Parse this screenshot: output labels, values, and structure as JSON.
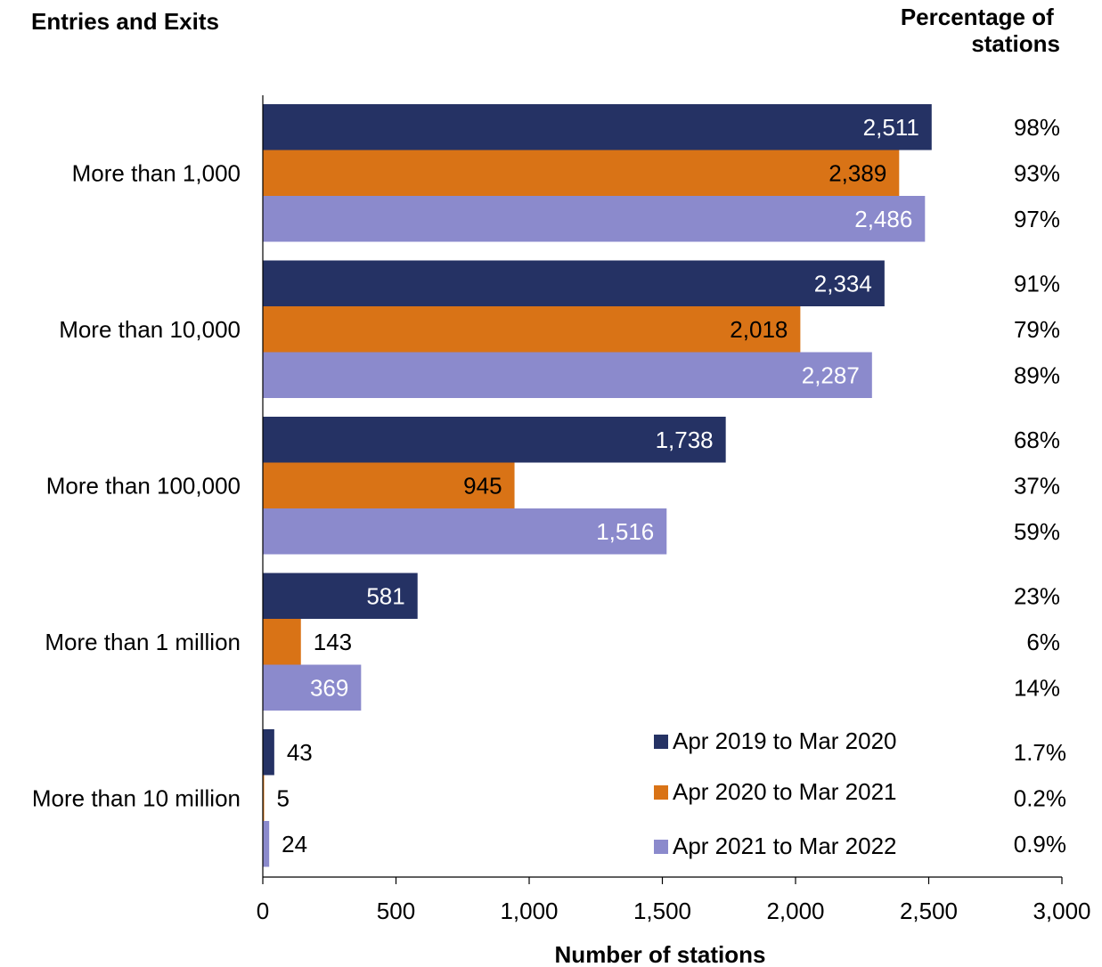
{
  "chart_data": {
    "type": "bar",
    "orientation": "horizontal",
    "y_header": "Entries and Exits",
    "right_header": [
      "Percentage of",
      "stations"
    ],
    "xlabel": "Number of stations",
    "xlim": [
      0,
      3000
    ],
    "xticks": [
      "0",
      "500",
      "1,000",
      "1,500",
      "2,000",
      "2,500",
      "3,000"
    ],
    "grid": false,
    "legend_position": "bottom-right",
    "categories": [
      "More than 1,000",
      "More than 10,000",
      "More than 100,000",
      "More than 1 million",
      "More than 10 million"
    ],
    "series": [
      {
        "name": "Apr 2019 to Mar 2020",
        "color": "#253264",
        "values": [
          2511,
          2334,
          1738,
          581,
          43
        ],
        "labels": [
          "2,511",
          "2,334",
          "1,738",
          "581",
          "43"
        ],
        "percentages": [
          "98%",
          "91%",
          "68%",
          "23%",
          "1.7%"
        ]
      },
      {
        "name": "Apr 2020 to Mar 2021",
        "color": "#D97316",
        "values": [
          2389,
          2018,
          945,
          143,
          5
        ],
        "labels": [
          "2,389",
          "2,018",
          "945",
          "143",
          "5"
        ],
        "percentages": [
          "93%",
          "79%",
          "37%",
          "6%",
          "0.2%"
        ]
      },
      {
        "name": "Apr 2021 to Mar 2022",
        "color": "#8B8ACC",
        "values": [
          2486,
          2287,
          1516,
          369,
          24
        ],
        "labels": [
          "2,486",
          "2,287",
          "1,516",
          "369",
          "24"
        ],
        "percentages": [
          "97%",
          "89%",
          "59%",
          "14%",
          "0.9%"
        ]
      }
    ]
  }
}
